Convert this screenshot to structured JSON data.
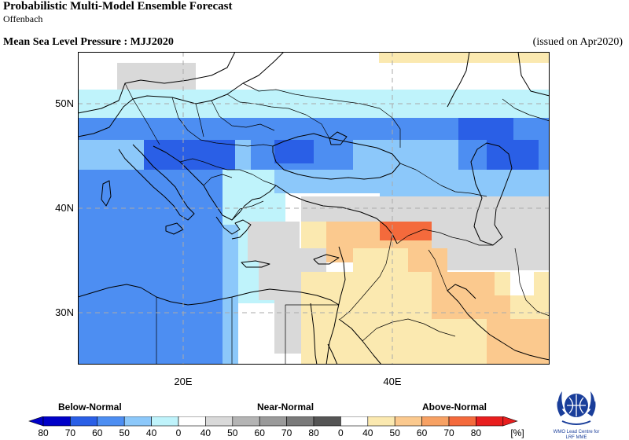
{
  "header": {
    "title": "Probabilistic Multi-Model Ensemble Forecast",
    "subtitle": "Offenbach",
    "variable_title": "Mean Sea Level Pressure : MJJ2020",
    "issued": "(issued on Apr2020)"
  },
  "map": {
    "lat_labels": [
      "50N",
      "40N",
      "30N"
    ],
    "lon_labels": [
      "20E",
      "40E"
    ],
    "gridlines": "dashed",
    "categories": {
      "below": "Below-Normal",
      "near": "Near-Normal",
      "above": "Above-Normal"
    }
  },
  "legend": {
    "below_ticks": [
      "80",
      "70",
      "60",
      "50",
      "40",
      "0"
    ],
    "near_ticks": [
      "40",
      "50",
      "60",
      "70",
      "80",
      "0"
    ],
    "above_ticks": [
      "40",
      "50",
      "60",
      "70",
      "80"
    ],
    "unit": "[%]",
    "below_colors": [
      "#0000c8",
      "#2a5fe6",
      "#4d8ef2",
      "#8cc8fa",
      "#bff3fb"
    ],
    "near_colors": [
      "#d9d9d9",
      "#b4b4b4",
      "#9a9a9a",
      "#7a7a7a",
      "#555555"
    ],
    "above_colors": [
      "#fbe9b0",
      "#fbc98e",
      "#f7a163",
      "#f46a3c",
      "#e81e1e"
    ]
  },
  "logo": {
    "line1": "WMO Lead Centre for",
    "line2": "LRF MME"
  },
  "colors": {
    "below_40": "#bff3fb",
    "below_50": "#8cc8fa",
    "below_60": "#4d8ef2",
    "below_70": "#2a5fe6",
    "near_40": "#d9d9d9",
    "above_40": "#fbe9b0",
    "above_50": "#fbc98e",
    "above_60": "#f7a163",
    "above_70": "#f46a3c"
  }
}
